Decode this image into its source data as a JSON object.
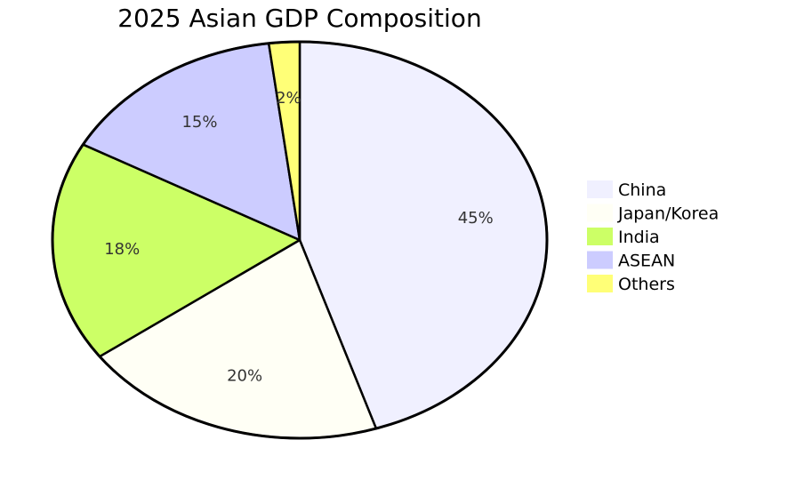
{
  "chart_data": {
    "type": "pie",
    "title": "2025 Asian GDP Composition",
    "legend_position": "right",
    "slices": [
      {
        "label": "China",
        "value": 45,
        "display": "45%",
        "color": "#f0f0ff"
      },
      {
        "label": "Japan/Korea",
        "value": 20,
        "display": "20%",
        "color": "#fffff5"
      },
      {
        "label": "India",
        "value": 18,
        "display": "18%",
        "color": "#ccff66"
      },
      {
        "label": "ASEAN",
        "value": 15,
        "display": "15%",
        "color": "#ccccff"
      },
      {
        "label": "Others",
        "value": 2,
        "display": "2%",
        "color": "#ffff77"
      }
    ]
  }
}
